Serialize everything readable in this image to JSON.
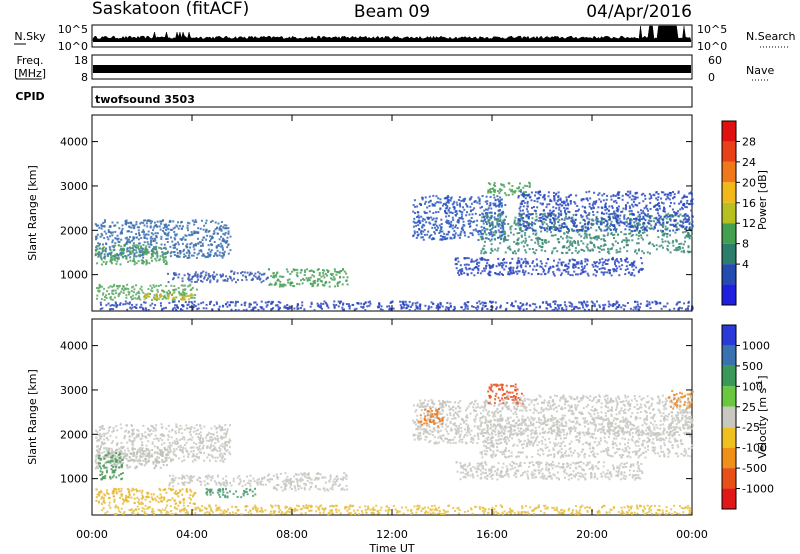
{
  "header": {
    "station": "Saskatoon (fitACF)",
    "beam": "Beam 09",
    "date": "04/Apr/2016"
  },
  "top_panels": {
    "nsky_label": "N.Sky",
    "nsky_ticks": [
      "10^5",
      "10^0"
    ],
    "nsearch_label": "N.Search",
    "nsearch_ticks": [
      "10^5",
      "10^0"
    ],
    "freq_label": "Freq.",
    "freq_unit": "[MHz]",
    "freq_ticks": [
      "18",
      "8"
    ],
    "nave_label": "Nave",
    "nave_ticks": [
      "60",
      "0"
    ],
    "cpid_label": "CPID",
    "cpid_value": "twofsound 3503"
  },
  "chart_data": [
    {
      "type": "heatmap",
      "name": "power",
      "ylabel": "Slant Range [km]",
      "xlabel": "Time UT",
      "x_ticks": [
        "00:00",
        "04:00",
        "08:00",
        "12:00",
        "16:00",
        "20:00",
        "00:00"
      ],
      "x_range_hours": [
        0,
        24
      ],
      "y_ticks": [
        "1000",
        "2000",
        "3000",
        "4000"
      ],
      "y_range_km": [
        180,
        4600
      ],
      "colorbar": {
        "label": "Power [dB]",
        "ticks": [
          "4",
          "8",
          "12",
          "16",
          "20",
          "24",
          "28"
        ],
        "colors": [
          "#1f1fe0",
          "#244bb0",
          "#2c7d6a",
          "#44a050",
          "#b8c020",
          "#f0b818",
          "#f07818",
          "#e84018",
          "#e01010"
        ]
      },
      "bands": [
        {
          "t0": 0.1,
          "t1": 5.5,
          "r0": 1400,
          "r1": 2250,
          "c": "#3a6fb0"
        },
        {
          "t0": 0.1,
          "t1": 3.0,
          "r0": 1250,
          "r1": 1700,
          "c": "#4aa058"
        },
        {
          "t0": 0.1,
          "t1": 4.2,
          "r0": 450,
          "r1": 800,
          "c": "#5aa860"
        },
        {
          "t0": 2.0,
          "t1": 4.0,
          "r0": 450,
          "r1": 600,
          "c": "#c8b420"
        },
        {
          "t0": 3.0,
          "t1": 7.0,
          "r0": 850,
          "r1": 1100,
          "c": "#3a5ab0"
        },
        {
          "t0": 7.0,
          "t1": 10.2,
          "r0": 750,
          "r1": 1150,
          "c": "#4aa058"
        },
        {
          "t0": 0.3,
          "t1": 24.0,
          "r0": 220,
          "r1": 420,
          "c": "#2c48c0"
        },
        {
          "t0": 12.8,
          "t1": 16.5,
          "r0": 1800,
          "r1": 2800,
          "c": "#2c58c0"
        },
        {
          "t0": 15.5,
          "t1": 24.0,
          "r0": 1500,
          "r1": 2400,
          "c": "#3a8a78"
        },
        {
          "t0": 14.5,
          "t1": 22.0,
          "r0": 1000,
          "r1": 1400,
          "c": "#2c48c0"
        },
        {
          "t0": 15.8,
          "t1": 17.5,
          "r0": 2800,
          "r1": 3100,
          "c": "#4aa058"
        },
        {
          "t0": 17.0,
          "t1": 24.0,
          "r0": 2000,
          "r1": 2900,
          "c": "#2a4ac0"
        }
      ]
    },
    {
      "type": "heatmap",
      "name": "velocity",
      "ylabel": "Slant Range [km]",
      "xlabel": "Time UT",
      "x_ticks": [
        "00:00",
        "04:00",
        "08:00",
        "12:00",
        "16:00",
        "20:00",
        "00:00"
      ],
      "x_range_hours": [
        0,
        24
      ],
      "y_ticks": [
        "1000",
        "2000",
        "3000",
        "4000"
      ],
      "y_range_km": [
        180,
        4600
      ],
      "colorbar": {
        "label": "Velocity [m s",
        "label_sup": "-1",
        "label_end": "]",
        "ticks": [
          "1000",
          "500",
          "100",
          "25",
          "-25",
          "-100",
          "-500",
          "-1000"
        ],
        "colors": [
          "#2a3ad8",
          "#3a72b0",
          "#3a9858",
          "#6ac840",
          "#c8c8c0",
          "#f0c020",
          "#f09018",
          "#e85018",
          "#e01818"
        ]
      },
      "bands": [
        {
          "t0": 0.1,
          "t1": 5.5,
          "r0": 1400,
          "r1": 2250,
          "c": "#c8c8c2"
        },
        {
          "t0": 0.1,
          "t1": 3.0,
          "r0": 1250,
          "r1": 1700,
          "c": "#c0c0b8"
        },
        {
          "t0": 0.1,
          "t1": 4.2,
          "r0": 450,
          "r1": 800,
          "c": "#e8b830"
        },
        {
          "t0": 0.2,
          "t1": 1.2,
          "r0": 1000,
          "r1": 1600,
          "c": "#4a9a58"
        },
        {
          "t0": 3.0,
          "t1": 7.0,
          "r0": 850,
          "r1": 1100,
          "c": "#c8c8c2"
        },
        {
          "t0": 7.0,
          "t1": 10.2,
          "r0": 750,
          "r1": 1150,
          "c": "#c8c8c2"
        },
        {
          "t0": 4.5,
          "t1": 6.5,
          "r0": 600,
          "r1": 800,
          "c": "#4a9a70"
        },
        {
          "t0": 0.3,
          "t1": 24.0,
          "r0": 220,
          "r1": 420,
          "c": "#e8c040"
        },
        {
          "t0": 12.8,
          "t1": 16.5,
          "r0": 1800,
          "r1": 2800,
          "c": "#c8c8c2"
        },
        {
          "t0": 15.5,
          "t1": 24.0,
          "r0": 1500,
          "r1": 2400,
          "c": "#c8c8c2"
        },
        {
          "t0": 14.5,
          "t1": 22.0,
          "r0": 1000,
          "r1": 1400,
          "c": "#c8c8c2"
        },
        {
          "t0": 13.0,
          "t1": 14.0,
          "r0": 2200,
          "r1": 2600,
          "c": "#e87a20"
        },
        {
          "t0": 15.8,
          "t1": 17.2,
          "r0": 2700,
          "r1": 3150,
          "c": "#e85020"
        },
        {
          "t0": 16.5,
          "t1": 24.0,
          "r0": 2000,
          "r1": 2900,
          "c": "#c8c8c2"
        },
        {
          "t0": 23.0,
          "t1": 24.0,
          "r0": 2600,
          "r1": 3000,
          "c": "#e89030"
        }
      ]
    }
  ]
}
